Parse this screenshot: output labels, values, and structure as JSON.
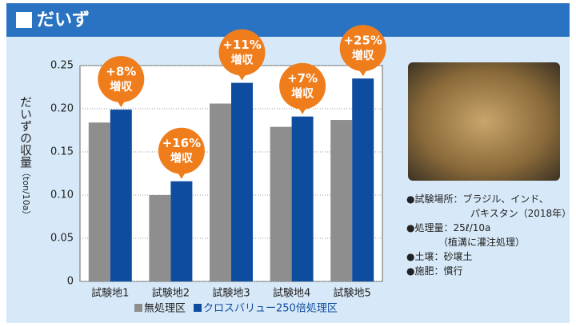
{
  "header": {
    "title": "だいず"
  },
  "chart_data": {
    "type": "bar",
    "y_label": "だいずの収量",
    "y_unit": "（ton/10a）",
    "categories": [
      "試験地1",
      "試験地2",
      "試験地3",
      "試験地4",
      "試験地5"
    ],
    "series": [
      {
        "name": "無処理区",
        "color": "#8e8e8e",
        "values": [
          0.184,
          0.1,
          0.206,
          0.179,
          0.187
        ]
      },
      {
        "name": "クロスバリュー250倍処理区",
        "color": "#0e4c9f",
        "values": [
          0.199,
          0.116,
          0.23,
          0.191,
          0.235
        ]
      }
    ],
    "annotations": [
      [
        "+8%",
        "増収"
      ],
      [
        "+16%",
        "増収"
      ],
      [
        "+11%",
        "増収"
      ],
      [
        "+7%",
        "増収"
      ],
      [
        "+25%",
        "増収"
      ]
    ],
    "annotation_color": "#ef7d1c",
    "ylim": [
      0,
      0.25
    ],
    "yticks": [
      0,
      0.05,
      {
        "value": 0.1,
        "label": "0.10"
      },
      0.15,
      {
        "value": 0.2,
        "label": "0.20"
      },
      0.25
    ],
    "grid": true
  },
  "notes": [
    "●試験場所：ブラジル、インド、",
    "パキスタン（2018年）",
    "●処理量：25ℓ/10a",
    "（植溝に灌注処理）",
    "●土壌：砂壌土",
    "●施肥：慣行"
  ]
}
